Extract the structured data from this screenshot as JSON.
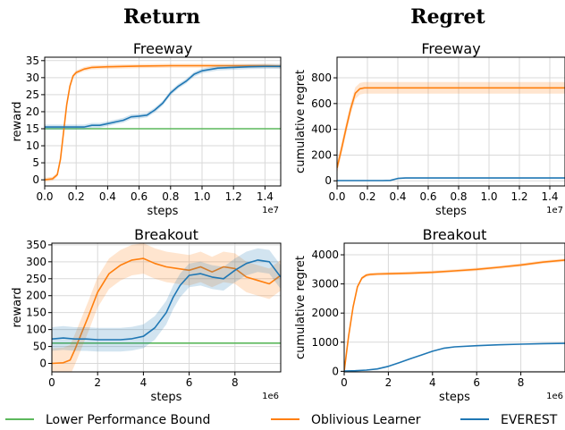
{
  "column_titles": [
    "Return",
    "Regret"
  ],
  "colors": {
    "lower_bound": "#5cb85c",
    "oblivious": "#ff7f0e",
    "everest": "#1f77b4",
    "grid": "#d9d9d9"
  },
  "legend": [
    {
      "label": "Lower Performance Bound",
      "color": "#5cb85c"
    },
    {
      "label": "Oblivious Learner",
      "color": "#ff7f0e"
    },
    {
      "label": "EVEREST",
      "color": "#1f77b4"
    }
  ],
  "chart_data": [
    {
      "type": "line",
      "title": "Freeway",
      "xlabel": "steps",
      "ylabel": "reward",
      "x_offset_label": "1e7",
      "xlim": [
        0,
        1.5
      ],
      "ylim": [
        -1.8,
        36
      ],
      "xticks": [
        0.0,
        0.2,
        0.4,
        0.6,
        0.8,
        1.0,
        1.2,
        1.4
      ],
      "xtick_labels": [
        "0.0",
        "0.2",
        "0.4",
        "0.6",
        "0.8",
        "1.0",
        "1.2",
        "1.4"
      ],
      "yticks": [
        0,
        5,
        10,
        15,
        20,
        25,
        30,
        35
      ],
      "ytick_labels": [
        "0",
        "5",
        "10",
        "15",
        "20",
        "25",
        "30",
        "35"
      ],
      "grid": true,
      "series": [
        {
          "key": "lower_bound",
          "x": [
            0,
            1.5
          ],
          "y": [
            15,
            15
          ]
        },
        {
          "key": "oblivious",
          "x": [
            0,
            0.05,
            0.08,
            0.1,
            0.12,
            0.14,
            0.16,
            0.18,
            0.2,
            0.25,
            0.3,
            0.4,
            0.5,
            0.6,
            0.8,
            1.0,
            1.2,
            1.4,
            1.5
          ],
          "y": [
            0,
            0.3,
            1.5,
            6,
            14,
            22,
            27.5,
            30.5,
            31.5,
            32.5,
            33,
            33.2,
            33.3,
            33.4,
            33.5,
            33.5,
            33.5,
            33.5,
            33.4
          ],
          "band": 0.6
        },
        {
          "key": "everest",
          "x": [
            0,
            0.2,
            0.25,
            0.3,
            0.35,
            0.4,
            0.45,
            0.5,
            0.55,
            0.6,
            0.65,
            0.7,
            0.75,
            0.8,
            0.85,
            0.9,
            0.95,
            1.0,
            1.1,
            1.2,
            1.3,
            1.4,
            1.5
          ],
          "y": [
            15.5,
            15.5,
            15.5,
            16,
            16,
            16.5,
            17,
            17.5,
            18.5,
            18.7,
            19,
            20.5,
            22.5,
            25.5,
            27.5,
            29,
            31,
            32,
            32.8,
            33,
            33.2,
            33.3,
            33.3
          ],
          "band": 0.7
        }
      ]
    },
    {
      "type": "line",
      "title": "Freeway",
      "xlabel": "steps",
      "ylabel": "cumulative regret",
      "x_offset_label": "1e7",
      "xlim": [
        0,
        1.5
      ],
      "ylim": [
        -40,
        960
      ],
      "xticks": [
        0.0,
        0.2,
        0.4,
        0.6,
        0.8,
        1.0,
        1.2,
        1.4
      ],
      "xtick_labels": [
        "0.0",
        "0.2",
        "0.4",
        "0.6",
        "0.8",
        "1.0",
        "1.2",
        "1.4"
      ],
      "yticks": [
        0,
        200,
        400,
        600,
        800
      ],
      "ytick_labels": [
        "0",
        "200",
        "400",
        "600",
        "800"
      ],
      "grid": true,
      "series": [
        {
          "key": "oblivious",
          "x": [
            0,
            0.03,
            0.06,
            0.09,
            0.12,
            0.15,
            0.18,
            0.2,
            0.3,
            0.5,
            0.8,
            1.0,
            1.2,
            1.5
          ],
          "y": [
            100,
            250,
            410,
            560,
            680,
            715,
            722,
            722,
            722,
            722,
            722,
            722,
            722,
            722
          ],
          "band": 45
        },
        {
          "key": "everest",
          "x": [
            0,
            0.3,
            0.35,
            0.4,
            0.45,
            0.6,
            1.0,
            1.5
          ],
          "y": [
            2,
            2,
            3,
            18,
            22,
            22,
            22,
            22
          ],
          "band": 4
        }
      ]
    },
    {
      "type": "line",
      "title": "Breakout",
      "xlabel": "steps",
      "ylabel": "reward",
      "x_offset_label": "1e6",
      "xlim": [
        0,
        10
      ],
      "ylim": [
        -25,
        355
      ],
      "xticks": [
        0,
        2,
        4,
        6,
        8
      ],
      "xtick_labels": [
        "0",
        "2",
        "4",
        "6",
        "8"
      ],
      "yticks": [
        0,
        50,
        100,
        150,
        200,
        250,
        300,
        350
      ],
      "ytick_labels": [
        "0",
        "50",
        "100",
        "150",
        "200",
        "250",
        "300",
        "350"
      ],
      "grid": true,
      "series": [
        {
          "key": "lower_bound",
          "x": [
            0,
            10
          ],
          "y": [
            60,
            60
          ]
        },
        {
          "key": "oblivious",
          "x": [
            0,
            0.5,
            0.8,
            1.0,
            1.3,
            1.6,
            2.0,
            2.5,
            3.0,
            3.5,
            4.0,
            4.5,
            5.0,
            5.5,
            6.0,
            6.5,
            7.0,
            7.5,
            8.0,
            8.5,
            9.0,
            9.5,
            10.0
          ],
          "y": [
            0,
            2,
            10,
            40,
            90,
            140,
            210,
            265,
            290,
            305,
            310,
            295,
            285,
            280,
            275,
            285,
            270,
            285,
            280,
            255,
            245,
            235,
            260
          ],
          "band": 45
        },
        {
          "key": "everest",
          "x": [
            0,
            0.5,
            1.0,
            1.5,
            2.0,
            2.5,
            3.0,
            3.5,
            4.0,
            4.5,
            5.0,
            5.3,
            5.6,
            6.0,
            6.5,
            7.0,
            7.5,
            8.0,
            8.5,
            9.0,
            9.5,
            10.0
          ],
          "y": [
            72,
            75,
            72,
            72,
            70,
            70,
            70,
            73,
            80,
            105,
            150,
            195,
            230,
            260,
            265,
            255,
            250,
            275,
            295,
            305,
            300,
            255
          ],
          "band": 35
        }
      ]
    },
    {
      "type": "line",
      "title": "Breakout",
      "xlabel": "steps",
      "ylabel": "cumulative regret",
      "x_offset_label": "1e6",
      "xlim": [
        0,
        10
      ],
      "ylim": [
        -20,
        4400
      ],
      "xticks": [
        0,
        2,
        4,
        6,
        8
      ],
      "xtick_labels": [
        "0",
        "2",
        "4",
        "6",
        "8"
      ],
      "yticks": [
        0,
        1000,
        2000,
        3000,
        4000
      ],
      "ytick_labels": [
        "0",
        "1000",
        "2000",
        "3000",
        "4000"
      ],
      "grid": true,
      "series": [
        {
          "key": "oblivious",
          "x": [
            0,
            0.2,
            0.4,
            0.6,
            0.8,
            1.0,
            1.2,
            1.5,
            2.0,
            3.0,
            4.0,
            5.0,
            6.0,
            7.0,
            8.0,
            9.0,
            10.0
          ],
          "y": [
            0,
            1200,
            2200,
            2900,
            3200,
            3300,
            3330,
            3340,
            3350,
            3370,
            3400,
            3450,
            3500,
            3570,
            3650,
            3750,
            3820
          ],
          "band": 55
        },
        {
          "key": "everest",
          "x": [
            0,
            0.5,
            1.0,
            1.5,
            2.0,
            2.5,
            3.0,
            3.5,
            4.0,
            4.5,
            5.0,
            6.0,
            7.0,
            8.0,
            9.0,
            10.0
          ],
          "y": [
            10,
            20,
            40,
            80,
            170,
            300,
            430,
            560,
            690,
            790,
            840,
            880,
            910,
            930,
            950,
            960
          ],
          "band": 15
        }
      ]
    }
  ]
}
